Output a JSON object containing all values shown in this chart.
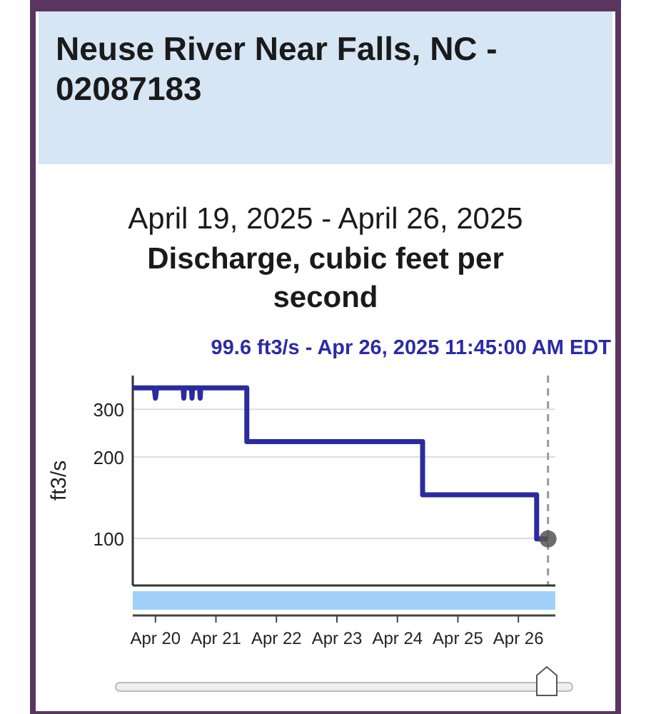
{
  "chart_data": {
    "type": "line",
    "title": "Neuse River Near Falls, NC - 02087183",
    "subtitle": "April 19, 2025 - April 26, 2025",
    "annotations": [
      "Discharge, cubic feet per second",
      "99.6 ft3/s - Apr 26, 2025 11:45:00 AM EDT"
    ],
    "ylabel": "ft3/s",
    "series": [
      {
        "type": "line",
        "color": "#2b2ba0",
        "x": [
          "2025-04-19T15:00",
          "2025-04-19T23:30",
          "2025-04-20T00:00",
          "2025-04-20T00:30",
          "2025-04-20T11:00",
          "2025-04-20T11:15",
          "2025-04-20T11:30",
          "2025-04-20T14:15",
          "2025-04-20T14:30",
          "2025-04-20T14:45",
          "2025-04-20T17:30",
          "2025-04-20T17:45",
          "2025-04-20T18:00",
          "2025-04-21T12:15",
          "2025-04-21T12:15",
          "2025-04-24T10:00",
          "2025-04-24T10:00",
          "2025-04-26T07:15",
          "2025-04-26T07:15",
          "2025-04-26T11:45"
        ],
        "values": [
          360,
          360,
          330,
          360,
          360,
          330,
          360,
          360,
          330,
          360,
          360,
          330,
          360,
          360,
          228,
          228,
          145,
          145,
          99.6,
          99.6
        ]
      },
      {
        "type": "scatter",
        "color": "#555555",
        "marker": "circle",
        "x": [
          "2025-04-26T11:45"
        ],
        "values": [
          99.6
        ]
      }
    ],
    "xlim": [
      "2025-04-19T15:00",
      "2025-04-26T14:40"
    ],
    "xticks": [
      {
        "value": "2025-04-20",
        "label": "Apr 20"
      },
      {
        "value": "2025-04-21",
        "label": "Apr 21"
      },
      {
        "value": "2025-04-22",
        "label": "Apr 22"
      },
      {
        "value": "2025-04-23",
        "label": "Apr 23"
      },
      {
        "value": "2025-04-24",
        "label": "Apr 24"
      },
      {
        "value": "2025-04-25",
        "label": "Apr 25"
      },
      {
        "value": "2025-04-26",
        "label": "Apr 26"
      }
    ],
    "ylim": [
      67,
      400
    ],
    "yticks": [
      100,
      200,
      300
    ],
    "log": "y",
    "grid": "y",
    "ref_lines": [
      {
        "axis": "x",
        "value": "2025-04-26T11:45",
        "color": "#999999",
        "line_style": "dashed"
      }
    ]
  }
}
